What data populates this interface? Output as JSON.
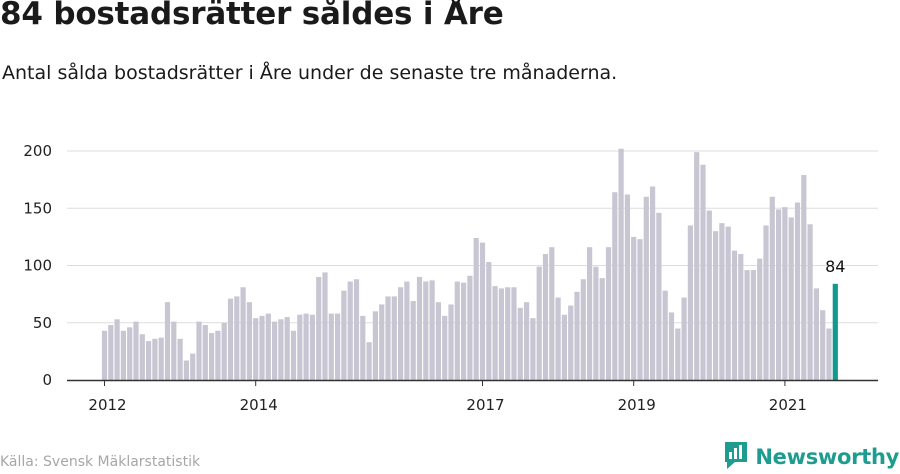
{
  "title": "84 bostadsrätter såldes i Åre",
  "subtitle": "Antal sålda bostadsrätter i Åre under de senaste tre månaderna.",
  "source": "Källa: Svensk Mäklarstatistik",
  "brand": {
    "name": "Newsworthy",
    "icon": "newsworthy-logo-icon"
  },
  "colors": {
    "bar": "#c8c6d3",
    "highlight": "#139a8e",
    "grid": "#dddddd",
    "axis": "#333333",
    "brand": "#1e9c8f"
  },
  "chart_data": {
    "type": "bar",
    "title": "84 bostadsrätter såldes i Åre",
    "xlabel": "",
    "ylabel": "",
    "ylim": [
      0,
      210
    ],
    "yticks": [
      0,
      50,
      100,
      150,
      200
    ],
    "start_date": "2012-01",
    "xtick_labels": [
      {
        "label": "2012",
        "index": 0
      },
      {
        "label": "2014",
        "index": 24
      },
      {
        "label": "2017",
        "index": 60
      },
      {
        "label": "2019",
        "index": 84
      },
      {
        "label": "2021",
        "index": 108
      }
    ],
    "highlight_label": "84",
    "values": [
      43,
      48,
      53,
      43,
      46,
      51,
      40,
      34,
      36,
      37,
      68,
      51,
      36,
      17,
      23,
      51,
      48,
      41,
      43,
      50,
      71,
      73,
      81,
      68,
      54,
      56,
      58,
      51,
      53,
      55,
      43,
      57,
      58,
      57,
      90,
      94,
      58,
      58,
      78,
      86,
      88,
      56,
      33,
      60,
      66,
      73,
      73,
      81,
      86,
      69,
      90,
      86,
      87,
      68,
      56,
      66,
      86,
      85,
      91,
      124,
      120,
      103,
      82,
      80,
      81,
      81,
      63,
      68,
      54,
      99,
      110,
      116,
      72,
      57,
      65,
      77,
      88,
      116,
      99,
      89,
      116,
      164,
      202,
      162,
      125,
      123,
      160,
      169,
      146,
      78,
      59,
      45,
      72,
      135,
      199,
      188,
      148,
      130,
      137,
      134,
      113,
      110,
      96,
      96,
      106,
      135,
      160,
      149,
      151,
      142,
      155,
      179,
      136,
      80,
      61,
      45,
      84
    ]
  }
}
